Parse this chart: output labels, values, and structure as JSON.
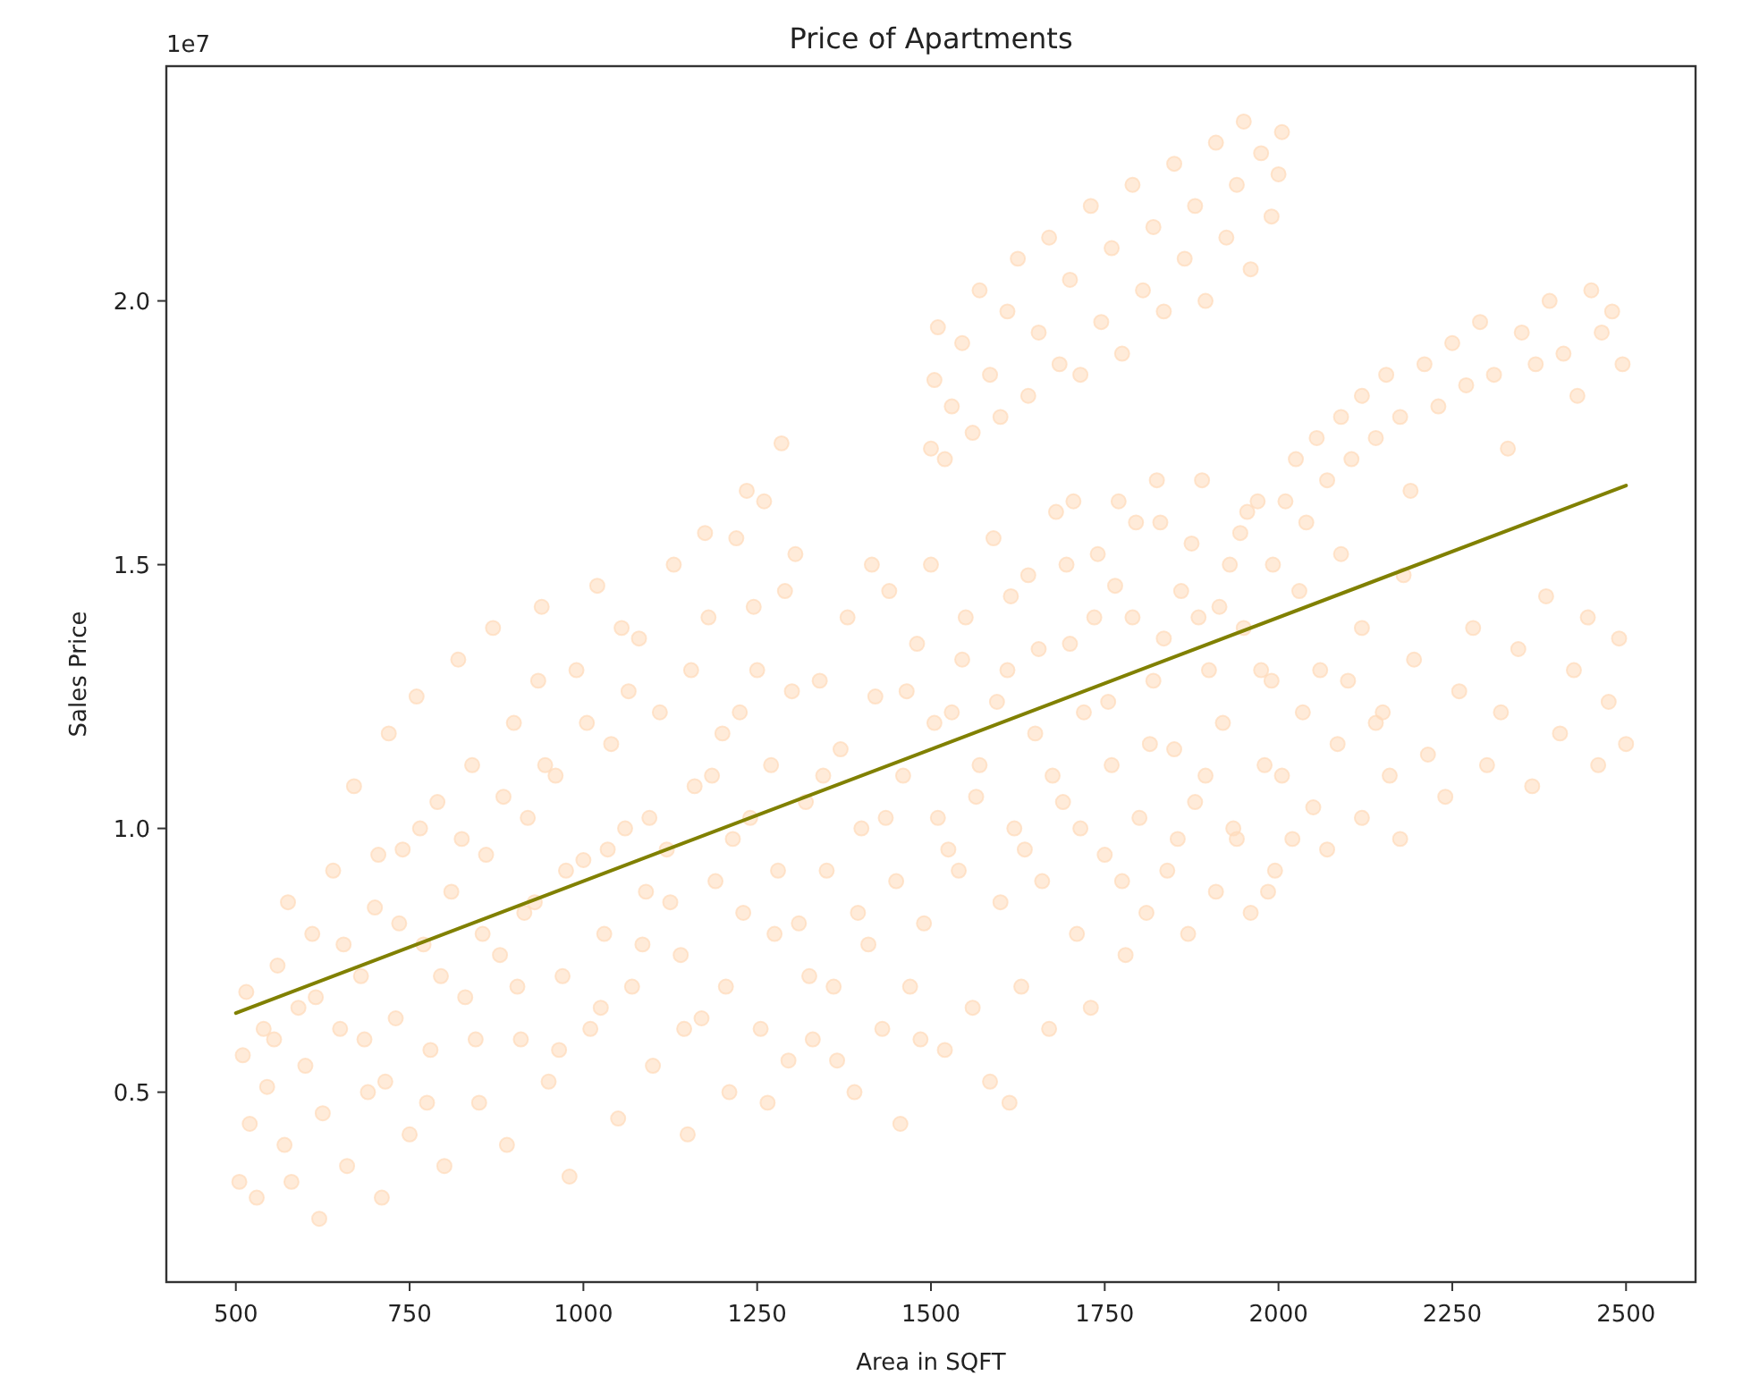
{
  "chart_data": {
    "type": "scatter",
    "title": "Price of Apartments",
    "xlabel": "Area in SQFT",
    "ylabel": "Sales Price",
    "annotations": [
      "1e7"
    ],
    "xlim": [
      400,
      2600
    ],
    "xticks": [
      500,
      750,
      1000,
      1250,
      1500,
      1750,
      2000,
      2250,
      2500
    ],
    "ylim": [
      0.14,
      2.445
    ],
    "yticks": [
      0.5,
      {
        "value": 1,
        "label": "1.0"
      },
      1.5,
      {
        "value": 2,
        "label": "2.0"
      }
    ],
    "series": [
      {
        "color": "#ffdab9",
        "marker": "circle",
        "x": [
          505,
          510,
          515,
          520,
          530,
          540,
          545,
          560,
          570,
          580,
          590,
          600,
          610,
          620,
          625,
          640,
          650,
          660,
          670,
          680,
          690,
          700,
          710,
          720,
          730,
          740,
          750,
          760,
          770,
          780,
          790,
          800,
          810,
          820,
          830,
          840,
          850,
          860,
          870,
          880,
          890,
          900,
          910,
          920,
          930,
          940,
          950,
          960,
          970,
          980,
          990,
          1000,
          1010,
          1020,
          1030,
          1040,
          1050,
          1060,
          1070,
          1080,
          1090,
          1100,
          1110,
          1120,
          1130,
          1140,
          1150,
          1160,
          1170,
          1180,
          1190,
          1200,
          1210,
          1220,
          1230,
          1240,
          1250,
          1255,
          1260,
          1270,
          1280,
          1285,
          1290,
          1295,
          1300,
          1310,
          1320,
          1330,
          1340,
          1350,
          1360,
          1370,
          1380,
          1390,
          1400,
          1410,
          1420,
          1430,
          1440,
          1450,
          1456,
          1460,
          1470,
          1480,
          1490,
          1500,
          1510,
          1520,
          1530,
          1540,
          1550,
          1560,
          1570,
          1585,
          1590,
          1600,
          1610,
          1613,
          1620,
          1630,
          1640,
          1650,
          1660,
          1670,
          1680,
          1690,
          1700,
          1710,
          1720,
          1730,
          1740,
          1750,
          1760,
          1770,
          1780,
          1790,
          1800,
          1810,
          1820,
          1830,
          1840,
          1850,
          1860,
          1870,
          1880,
          1890,
          1900,
          1910,
          1920,
          1930,
          1940,
          1950,
          1960,
          1970,
          1980,
          1990,
          1995,
          1500,
          1505,
          1510,
          1520,
          1530,
          1545,
          1560,
          1570,
          1585,
          1600,
          1610,
          1625,
          1640,
          1655,
          1670,
          1685,
          1700,
          1715,
          1730,
          1745,
          1760,
          1775,
          1790,
          1805,
          1820,
          1835,
          1850,
          1865,
          1880,
          1895,
          1910,
          1925,
          1940,
          1950,
          1960,
          1975,
          1990,
          2000,
          2005,
          2010,
          2025,
          2040,
          2055,
          2070,
          2090,
          2105,
          2120,
          2140,
          2155,
          2175,
          2190,
          2210,
          2230,
          2250,
          2270,
          2290,
          2310,
          2330,
          2350,
          2370,
          2390,
          2410,
          2430,
          2450,
          2465,
          2480,
          2495,
          2030,
          2060,
          2090,
          2120,
          2150,
          2180,
          2005,
          2020,
          2035,
          2050,
          2070,
          2085,
          2100,
          2120,
          2140,
          2160,
          2175,
          2195,
          2215,
          2240,
          2260,
          2280,
          2300,
          2320,
          2345,
          2365,
          2385,
          2405,
          2425,
          2445,
          2460,
          2475,
          2490,
          2500,
          705,
          735,
          765,
          795,
          825,
          855,
          885,
          915,
          945,
          975,
          1005,
          1035,
          1065,
          1095,
          1125,
          1155,
          1185,
          1215,
          1245,
          1275,
          655,
          685,
          615,
          575,
          555,
          715,
          775,
          845,
          905,
          965,
          1025,
          1085,
          1145,
          1205,
          1265,
          935,
          1055,
          1175,
          1225,
          1235,
          1505,
          1525,
          1545,
          1565,
          1595,
          1615,
          1635,
          1655,
          1675,
          1695,
          1715,
          1735,
          1755,
          1775,
          1795,
          1815,
          1835,
          1855,
          1875,
          1895,
          1915,
          1935,
          1955,
          1975,
          1985,
          1465,
          1485,
          1435,
          1415,
          1395,
          1345,
          1325,
          1305,
          1365,
          1705,
          1765,
          1825,
          1885,
          1945,
          1992
        ],
        "values": [
          0.33,
          0.57,
          0.69,
          0.44,
          0.3,
          0.62,
          0.51,
          0.74,
          0.4,
          0.33,
          0.66,
          0.55,
          0.8,
          0.26,
          0.46,
          0.92,
          0.62,
          0.36,
          1.08,
          0.72,
          0.5,
          0.85,
          0.3,
          1.18,
          0.64,
          0.96,
          0.42,
          1.25,
          0.78,
          0.58,
          1.05,
          0.36,
          0.88,
          1.32,
          0.68,
          1.12,
          0.48,
          0.95,
          1.38,
          0.76,
          0.4,
          1.2,
          0.6,
          1.02,
          0.86,
          1.42,
          0.52,
          1.1,
          0.72,
          0.34,
          1.3,
          0.94,
          0.62,
          1.46,
          0.8,
          1.16,
          0.45,
          1,
          0.7,
          1.36,
          0.88,
          0.55,
          1.22,
          0.96,
          1.5,
          0.76,
          0.42,
          1.08,
          0.64,
          1.4,
          0.9,
          1.18,
          0.5,
          1.55,
          0.84,
          1.02,
          1.3,
          0.62,
          1.62,
          1.12,
          0.92,
          1.73,
          1.45,
          0.56,
          1.26,
          0.82,
          1.05,
          0.6,
          1.28,
          0.92,
          0.7,
          1.15,
          1.4,
          0.5,
          1,
          0.78,
          1.25,
          0.62,
          1.45,
          0.9,
          0.44,
          1.1,
          0.7,
          1.35,
          0.82,
          1.5,
          1.02,
          0.58,
          1.22,
          0.92,
          1.4,
          0.66,
          1.12,
          0.52,
          1.55,
          0.86,
          1.3,
          0.48,
          1,
          0.7,
          1.48,
          1.18,
          0.9,
          0.62,
          1.6,
          1.05,
          1.35,
          0.8,
          1.22,
          0.66,
          1.52,
          0.95,
          1.12,
          1.62,
          0.76,
          1.4,
          1.02,
          0.84,
          1.28,
          1.58,
          0.92,
          1.15,
          1.45,
          0.8,
          1.05,
          1.66,
          1.3,
          0.88,
          1.2,
          1.5,
          0.98,
          1.38,
          0.84,
          1.62,
          1.12,
          1.28,
          0.92,
          1.72,
          1.85,
          1.95,
          1.7,
          1.8,
          1.92,
          1.75,
          2.02,
          1.86,
          1.78,
          1.98,
          2.08,
          1.82,
          1.94,
          2.12,
          1.88,
          2.04,
          1.86,
          2.18,
          1.96,
          2.1,
          1.9,
          2.22,
          2.02,
          2.14,
          1.98,
          2.26,
          2.08,
          2.18,
          2,
          2.3,
          2.12,
          2.22,
          2.34,
          2.06,
          2.28,
          2.16,
          2.24,
          2.32,
          1.62,
          1.7,
          1.58,
          1.74,
          1.66,
          1.78,
          1.7,
          1.82,
          1.74,
          1.86,
          1.78,
          1.64,
          1.88,
          1.8,
          1.92,
          1.84,
          1.96,
          1.86,
          1.72,
          1.94,
          1.88,
          2,
          1.9,
          1.82,
          2.02,
          1.94,
          1.98,
          1.88,
          1.45,
          1.3,
          1.52,
          1.38,
          1.22,
          1.48,
          1.1,
          0.98,
          1.22,
          1.04,
          0.96,
          1.16,
          1.28,
          1.02,
          1.2,
          1.1,
          0.98,
          1.32,
          1.14,
          1.06,
          1.26,
          1.38,
          1.12,
          1.22,
          1.34,
          1.08,
          1.44,
          1.18,
          1.3,
          1.4,
          1.12,
          1.24,
          1.36,
          1.16,
          0.95,
          0.82,
          1,
          0.72,
          0.98,
          0.8,
          1.06,
          0.84,
          1.12,
          0.92,
          1.2,
          0.96,
          1.26,
          1.02,
          0.86,
          1.3,
          1.1,
          0.98,
          1.42,
          0.8,
          0.78,
          0.6,
          0.68,
          0.86,
          0.6,
          0.52,
          0.48,
          0.6,
          0.7,
          0.58,
          0.66,
          0.78,
          0.62,
          0.7,
          0.48,
          1.28,
          1.38,
          1.56,
          1.22,
          1.64,
          1.2,
          0.96,
          1.32,
          1.06,
          1.24,
          1.44,
          0.96,
          1.34,
          1.1,
          1.5,
          1,
          1.4,
          1.24,
          0.9,
          1.58,
          1.16,
          1.36,
          0.98,
          1.54,
          1.1,
          1.42,
          1,
          1.6,
          1.3,
          0.88,
          1.26,
          0.6,
          1.02,
          1.5,
          0.84,
          1.1,
          0.72,
          1.52,
          0.56,
          1.62,
          1.46,
          1.66,
          1.4,
          1.56,
          1.5
        ]
      },
      {
        "type": "line",
        "color": "#808000",
        "x": [
          500,
          2500
        ],
        "values": [
          0.65,
          1.65
        ]
      }
    ]
  }
}
